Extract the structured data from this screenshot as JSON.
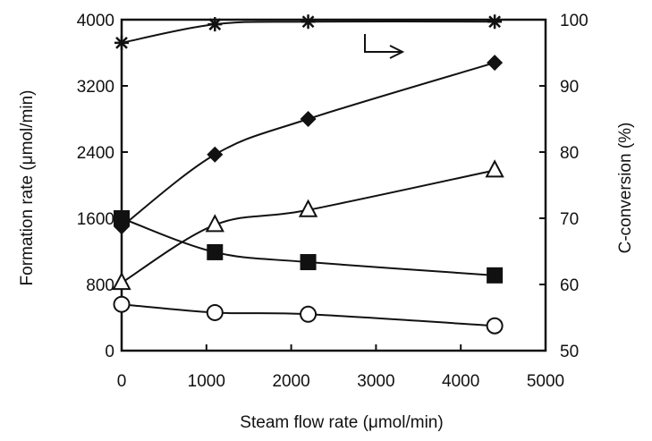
{
  "chart_data": {
    "type": "line",
    "xlabel": "Steam flow rate (μmol/min)",
    "ylabel": "Formation rate (μmol/min)",
    "y2label": "C-conversion (%)",
    "xlim": [
      0,
      5000
    ],
    "ylim": [
      0,
      4000
    ],
    "y2lim": [
      50,
      100
    ],
    "x_ticks": [
      0,
      1000,
      2000,
      3000,
      4000,
      5000
    ],
    "y_ticks": [
      0,
      800,
      1600,
      2400,
      3200,
      4000
    ],
    "y2_ticks": [
      50,
      60,
      70,
      80,
      90,
      100
    ],
    "grid": false,
    "annotation": "arrow pointing right to the C-conversion axis",
    "series": [
      {
        "marker": "asterisk",
        "axis": "right",
        "x": [
          0,
          1100,
          2200,
          4400
        ],
        "values": [
          96.5,
          99.3,
          99.7,
          99.7
        ]
      },
      {
        "marker": "filled-diamond",
        "axis": "left",
        "x": [
          0,
          1100,
          2200,
          4400
        ],
        "values": [
          1500,
          2370,
          2800,
          3480
        ]
      },
      {
        "marker": "open-triangle",
        "axis": "left",
        "x": [
          0,
          1100,
          2200,
          4400
        ],
        "values": [
          820,
          1520,
          1700,
          2180
        ]
      },
      {
        "marker": "filled-square",
        "axis": "left",
        "x": [
          0,
          1100,
          2200,
          4400
        ],
        "values": [
          1600,
          1190,
          1070,
          910
        ]
      },
      {
        "marker": "open-circle",
        "axis": "left",
        "x": [
          0,
          1100,
          2200,
          4400
        ],
        "values": [
          560,
          460,
          440,
          300
        ]
      }
    ]
  }
}
